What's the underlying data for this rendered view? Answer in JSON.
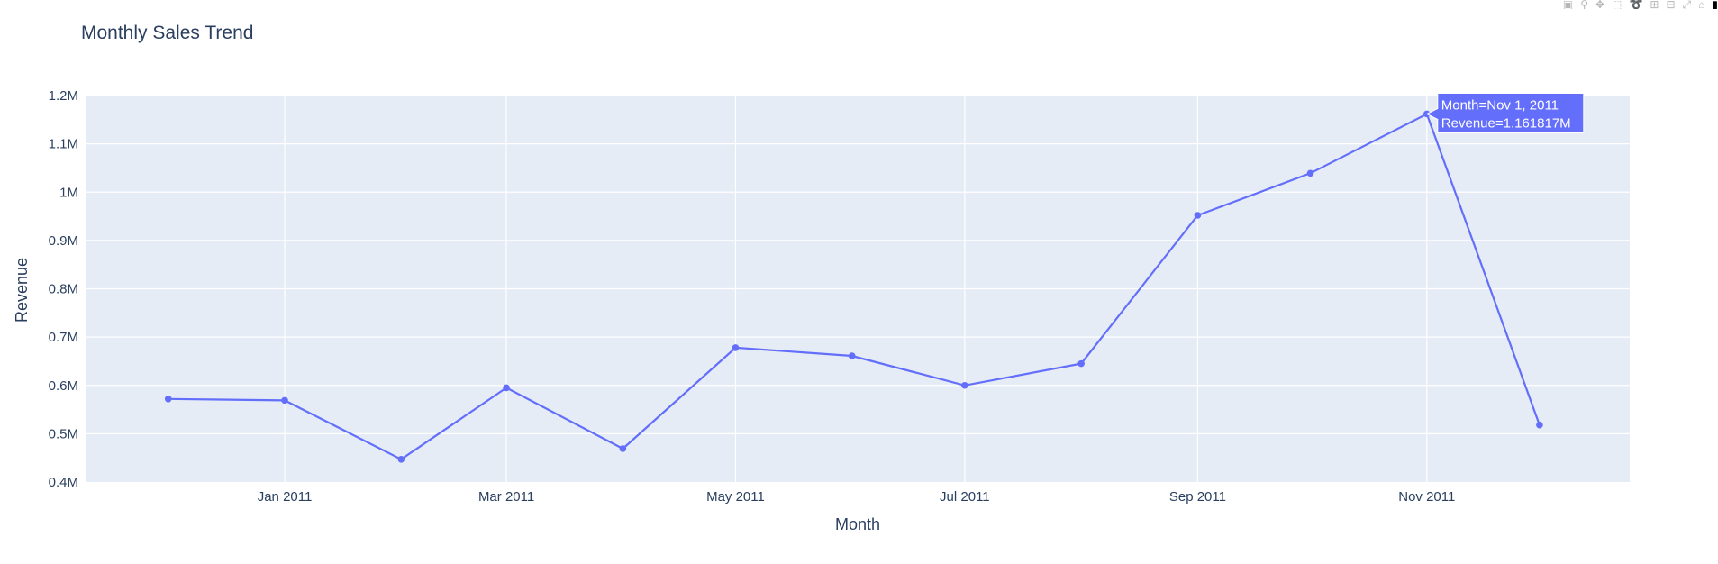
{
  "chart_data": {
    "type": "line",
    "title": "Monthly Sales Trend",
    "xlabel": "Month",
    "ylabel": "Revenue",
    "ylim": [
      400000,
      1200000
    ],
    "y_ticks": [
      {
        "value": 400000,
        "label": "0.4M"
      },
      {
        "value": 500000,
        "label": "0.5M"
      },
      {
        "value": 600000,
        "label": "0.6M"
      },
      {
        "value": 700000,
        "label": "0.7M"
      },
      {
        "value": 800000,
        "label": "0.8M"
      },
      {
        "value": 900000,
        "label": "0.9M"
      },
      {
        "value": 1000000,
        "label": "1M"
      },
      {
        "value": 1100000,
        "label": "1.1M"
      },
      {
        "value": 1200000,
        "label": "1.2M"
      }
    ],
    "x_ticks": [
      {
        "date": "2011-01-01",
        "label": "Jan 2011"
      },
      {
        "date": "2011-03-01",
        "label": "Mar 2011"
      },
      {
        "date": "2011-05-01",
        "label": "May 2011"
      },
      {
        "date": "2011-07-01",
        "label": "Jul 2011"
      },
      {
        "date": "2011-09-01",
        "label": "Sep 2011"
      },
      {
        "date": "2011-11-01",
        "label": "Nov 2011"
      }
    ],
    "series": [
      {
        "color": "#636efa",
        "x": [
          "2010-12-01",
          "2011-01-01",
          "2011-02-01",
          "2011-03-01",
          "2011-04-01",
          "2011-05-01",
          "2011-06-01",
          "2011-07-01",
          "2011-08-01",
          "2011-09-01",
          "2011-10-01",
          "2011-11-01",
          "2011-12-01"
        ],
        "y": [
          572000,
          569000,
          447000,
          595000,
          469000,
          678000,
          661000,
          600000,
          645000,
          952000,
          1039000,
          1161817,
          518000
        ]
      }
    ],
    "hover": {
      "point_date": "2011-11-01",
      "point_value": 1161817,
      "line1": "Month=Nov 1, 2011",
      "line2": "Revenue=1.161817M"
    },
    "grid": true,
    "plot_bgcolor": "#e5ecf6",
    "grid_color": "#ffffff"
  },
  "modebar": {
    "icons": [
      "camera-icon",
      "zoom-icon",
      "pan-icon",
      "box-select-icon",
      "lasso-icon",
      "zoom-in-icon",
      "zoom-out-icon",
      "autoscale-icon",
      "reset-axes-icon",
      "plotly-logo-icon"
    ]
  }
}
